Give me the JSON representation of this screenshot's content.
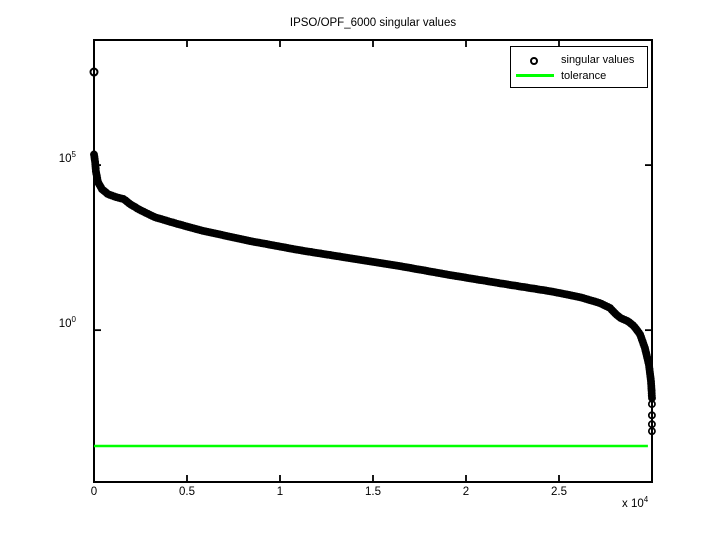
{
  "title": "IPSO/OPF_6000 singular values",
  "legend": {
    "items": [
      {
        "label": "singular values",
        "marker": "circle",
        "color": "#000000"
      },
      {
        "label": "tolerance",
        "marker": "line",
        "color": "#00FF00"
      }
    ]
  },
  "x_axis": {
    "tick_labels": [
      "0",
      "0.5",
      "1",
      "1.5",
      "2",
      "2.5"
    ],
    "multiplier_prefix": "x 10",
    "multiplier_exponent": "4"
  },
  "y_axis": {
    "tick_labels": [
      {
        "base": "10",
        "exponent": "5"
      },
      {
        "base": "10",
        "exponent": "0"
      }
    ]
  },
  "chart_data": {
    "type": "scatter",
    "title": "IPSO/OPF_6000 singular values",
    "xlabel": "",
    "ylabel": "",
    "x_scale": "linear",
    "y_scale": "log",
    "xlim": [
      0,
      30000
    ],
    "ylim_log10": [
      -4.6,
      8.79
    ],
    "x_ticks_values": [
      0,
      5000,
      10000,
      15000,
      20000,
      25000
    ],
    "x_tick_labels": [
      "0",
      "0.5",
      "1",
      "1.5",
      "2",
      "2.5"
    ],
    "x_multiplier": "x 10^4",
    "y_ticks_exponents": [
      5,
      0
    ],
    "grid": false,
    "legend_position": "top-right-inside",
    "background_color": "#FFFFFF",
    "marker_color": "#000000",
    "tolerance_color": "#00FF00",
    "tolerance": 0.00031,
    "tolerance_x_range": [
      0,
      29780
    ],
    "series": {
      "name": "singular values",
      "note": "approx 30000 singular values, rendered as dense marker chain; points given as [x, log10(value)] control points",
      "first_point": [
        0,
        7.82
      ],
      "dense_curve_log10": [
        [
          0,
          5.32
        ],
        [
          54,
          5.12
        ],
        [
          108,
          4.79
        ],
        [
          215,
          4.48
        ],
        [
          430,
          4.27
        ],
        [
          753,
          4.12
        ],
        [
          1183,
          4.03
        ],
        [
          1613,
          3.97
        ],
        [
          1935,
          3.82
        ],
        [
          2473,
          3.64
        ],
        [
          3280,
          3.42
        ],
        [
          4355,
          3.24
        ],
        [
          5699,
          3.03
        ],
        [
          8387,
          2.7
        ],
        [
          11075,
          2.42
        ],
        [
          13763,
          2.18
        ],
        [
          16452,
          1.94
        ],
        [
          19140,
          1.67
        ],
        [
          21828,
          1.42
        ],
        [
          24516,
          1.18
        ],
        [
          26129,
          1.0
        ],
        [
          27204,
          0.82
        ],
        [
          27742,
          0.67
        ],
        [
          28065,
          0.48
        ],
        [
          28333,
          0.36
        ],
        [
          28710,
          0.27
        ],
        [
          29032,
          0.12
        ],
        [
          29355,
          -0.12
        ],
        [
          29624,
          -0.55
        ],
        [
          29839,
          -1.06
        ],
        [
          29946,
          -1.55
        ],
        [
          30000,
          -2.06
        ]
      ],
      "tail_points_log10": [
        [
          29995,
          -2.24
        ],
        [
          29995,
          -2.58
        ],
        [
          29995,
          -2.85
        ],
        [
          29995,
          -3.06
        ]
      ]
    }
  }
}
